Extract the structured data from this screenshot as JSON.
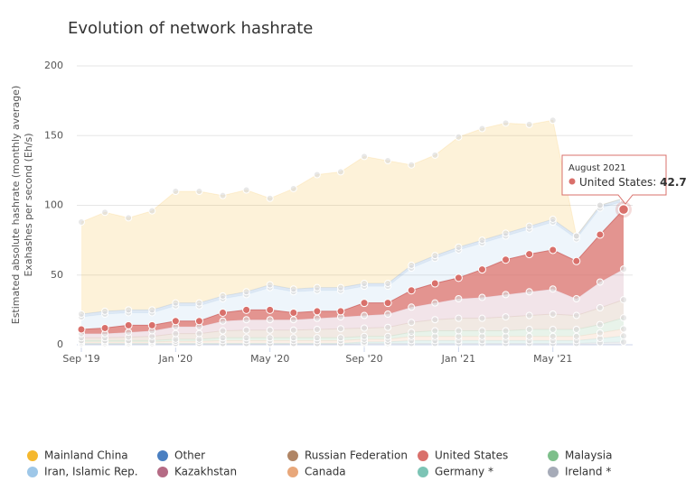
{
  "chart_data": {
    "type": "stacked_area",
    "title": "Evolution of network hashrate",
    "y_label": [
      "Estimated absolute hashrate (monthly average)",
      "Exahashes per second (Eh/s)"
    ],
    "categories": [
      "Sep '19",
      null,
      null,
      null,
      "Jan '20",
      null,
      null,
      null,
      "May '20",
      null,
      null,
      null,
      "Sep '20",
      null,
      null,
      null,
      "Jan '21",
      null,
      null,
      null,
      "May '21",
      null,
      null,
      null
    ],
    "ylim": [
      0,
      200
    ],
    "yticks": [
      0,
      50,
      100,
      150,
      200
    ],
    "grid": true,
    "stack_order": [
      9,
      8,
      7,
      4,
      2,
      6,
      3,
      5,
      1,
      0
    ],
    "series": [
      {
        "name": "Mainland China",
        "color": "#f5b82e",
        "values": [
          66,
          71,
          66,
          71,
          80,
          80,
          72,
          73,
          62,
          72,
          81,
          83,
          91,
          88,
          72,
          72,
          79,
          80,
          79,
          73,
          71,
          0,
          0,
          0
        ]
      },
      {
        "name": "Other",
        "color": "#4a7fc1",
        "values": [
          2,
          2,
          2,
          2,
          2,
          2,
          2,
          2,
          2,
          2,
          2,
          2,
          2,
          2,
          2,
          2,
          2,
          2,
          2,
          2,
          2,
          2,
          2,
          2
        ]
      },
      {
        "name": "Russian Federation",
        "color": "#b08565",
        "values": [
          2,
          2,
          2.5,
          3,
          4,
          4,
          5,
          5.5,
          5.5,
          5.5,
          6,
          6.5,
          6,
          6.5,
          7,
          8,
          9,
          9,
          10,
          10,
          11,
          10,
          12,
          13
        ]
      },
      {
        "name": "United States",
        "color": "#d9706b",
        "values": [
          3,
          4,
          5,
          4,
          4,
          4,
          6,
          7,
          7,
          5,
          5,
          4,
          9,
          8,
          12,
          14,
          15,
          20,
          25,
          27,
          28,
          27,
          34,
          42.7
        ]
      },
      {
        "name": "Malaysia",
        "color": "#7dbf8a",
        "values": [
          1,
          1,
          1,
          1,
          1.5,
          1.5,
          2,
          2,
          2,
          2,
          2,
          2,
          2,
          2,
          3,
          4,
          4,
          4,
          4,
          5,
          5,
          5,
          6,
          8
        ]
      },
      {
        "name": "Iran, Islamic Rep.",
        "color": "#9ec7e8",
        "values": [
          9,
          10,
          9,
          9,
          11,
          11,
          10,
          11,
          16,
          15,
          15,
          15,
          12,
          12,
          16,
          18,
          20,
          19,
          17,
          18,
          20,
          16,
          19,
          6
        ]
      },
      {
        "name": "Kazakhstan",
        "color": "#b56b85",
        "values": [
          3,
          3,
          3.5,
          4,
          5,
          5,
          7,
          7.5,
          7.5,
          7.5,
          8,
          8.5,
          9,
          9.5,
          11,
          12,
          14,
          15,
          16,
          17,
          18,
          12,
          18.5,
          22
        ]
      },
      {
        "name": "Canada",
        "color": "#e8a77a",
        "values": [
          1,
          1,
          1,
          1,
          1.5,
          1.5,
          2,
          2,
          2,
          2,
          2,
          2,
          2,
          2,
          3,
          3,
          3,
          3,
          3,
          3,
          3,
          3,
          4,
          5
        ]
      },
      {
        "name": "Germany *",
        "color": "#7cc4b5",
        "values": [
          0.5,
          0.5,
          0.5,
          0.5,
          0.5,
          0.5,
          0.5,
          0.5,
          0.5,
          0.5,
          0.5,
          0.5,
          1,
          1,
          2,
          2,
          2,
          2,
          2,
          2,
          2,
          2,
          3,
          4.3
        ]
      },
      {
        "name": "Ireland *",
        "color": "#a6abb8",
        "values": [
          0.5,
          0.5,
          0.5,
          0.5,
          0.5,
          0.5,
          0.5,
          0.5,
          0.5,
          0.5,
          0.5,
          0.5,
          1,
          1,
          1,
          1,
          1,
          1,
          1,
          1,
          1,
          1,
          1.5,
          2
        ]
      }
    ],
    "tooltip": {
      "title": "August 2021",
      "series": 3,
      "index": 23
    }
  }
}
